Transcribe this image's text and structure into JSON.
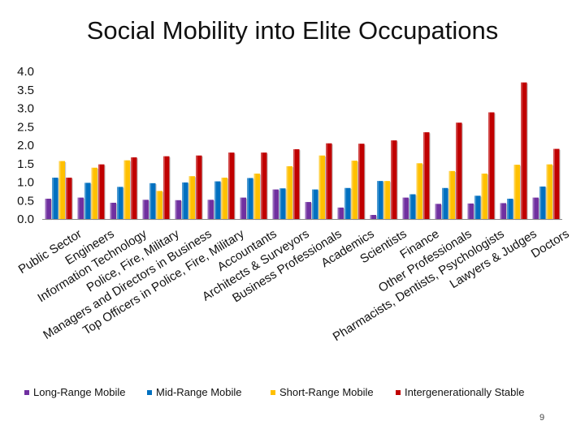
{
  "slide": {
    "page_number": "9"
  },
  "chart_data": {
    "type": "bar",
    "title": "Social Mobility into Elite Occupations",
    "xlabel": "",
    "ylabel": "",
    "ylim": [
      0,
      4.0
    ],
    "yticks": [
      "0.0",
      "0.5",
      "1.0",
      "1.5",
      "2.0",
      "2.5",
      "3.0",
      "3.5",
      "4.0"
    ],
    "grid": false,
    "legend_position": "bottom",
    "categories": [
      "Public Sector",
      "Engineers",
      "Information Technology",
      "Police, Fire, Military",
      "Managers and Directors in Business",
      "Top Officers in Police, Fire, Military",
      "Accountants",
      "Architects & Surveyors",
      "Business Professionals",
      "Academics",
      "Scientists",
      "Finance",
      "Other Professionals",
      "Pharmacists, Dentists, Psychologists",
      "Lawyers & Judges",
      "Doctors"
    ],
    "tick_labels": [
      "Public Sector",
      "Engineers",
      "Information Technology",
      "Police, Fire, Military",
      "Managers and Directors in Business",
      "Top Officers in Police, Fire, Military",
      "Accountants",
      "Architects & Surveyors",
      "Business Professionals",
      "Academics",
      "Scientists",
      "Finance",
      "Other Professionals",
      "Pharmacists, Dentists, Psychologists",
      "Lawyers & Judges",
      "Doctors"
    ],
    "series": [
      {
        "name": "Long-Range Mobile",
        "color": "#7030a0",
        "values": [
          0.55,
          0.58,
          0.44,
          0.52,
          0.51,
          0.52,
          0.58,
          0.8,
          0.46,
          0.31,
          0.11,
          0.58,
          0.41,
          0.42,
          0.43,
          0.58
        ]
      },
      {
        "name": "Mid-Range Mobile",
        "color": "#0070c0",
        "values": [
          1.12,
          0.98,
          0.87,
          0.97,
          0.99,
          1.02,
          1.11,
          0.83,
          0.8,
          0.84,
          1.03,
          0.67,
          0.84,
          0.63,
          0.55,
          0.88
        ]
      },
      {
        "name": "Short-Range Mobile",
        "color": "#ffc000",
        "values": [
          1.57,
          1.39,
          1.59,
          0.76,
          1.16,
          1.12,
          1.23,
          1.43,
          1.72,
          1.58,
          1.03,
          1.51,
          1.3,
          1.23,
          1.47,
          1.48
        ]
      },
      {
        "name": "Intergenerationally Stable",
        "color": "#c00000",
        "values": [
          1.12,
          1.48,
          1.67,
          1.7,
          1.72,
          1.8,
          1.8,
          1.89,
          2.05,
          2.04,
          2.13,
          2.35,
          2.61,
          2.89,
          3.7,
          1.9
        ]
      }
    ]
  }
}
